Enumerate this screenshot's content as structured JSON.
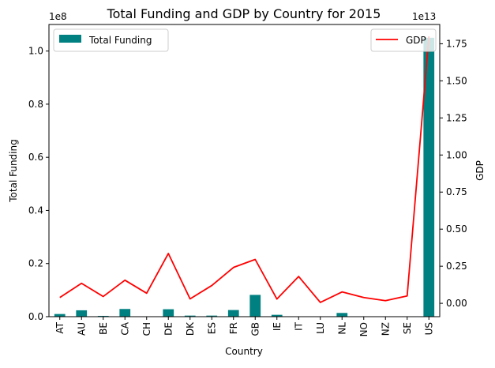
{
  "chart_data": {
    "type": "bar",
    "title": "Total Funding and GDP by Country for 2015",
    "xlabel": "Country",
    "ylabel": "Total Funding",
    "y2label": "GDP",
    "left_axis_multiplier": "1e8",
    "right_axis_multiplier": "1e13",
    "categories": [
      "AT",
      "AU",
      "BE",
      "CA",
      "CH",
      "DE",
      "DK",
      "ES",
      "FR",
      "GB",
      "IE",
      "IT",
      "LU",
      "NL",
      "NO",
      "NZ",
      "SE",
      "US"
    ],
    "ylim": [
      0,
      110000000.0
    ],
    "y2lim": [
      -900000000000.0,
      18800000000000.0
    ],
    "left_ticks": [
      0,
      20000000.0,
      40000000.0,
      60000000.0,
      80000000.0,
      100000000.0
    ],
    "left_tick_labels": [
      "0.0",
      "0.2",
      "0.4",
      "0.6",
      "0.8",
      "1.0"
    ],
    "right_ticks": [
      0,
      2500000000000.0,
      5000000000000.0,
      7500000000000.0,
      10000000000000.0,
      12500000000000.0,
      15000000000000.0,
      17500000000000.0
    ],
    "right_tick_labels": [
      "0.00",
      "0.25",
      "0.50",
      "0.75",
      "1.00",
      "1.25",
      "1.50",
      "1.75"
    ],
    "grid": false,
    "series": [
      {
        "name": "Total Funding",
        "type": "bar",
        "axis": "left",
        "color": "#008080",
        "values": [
          1000000,
          2400000,
          300000,
          2900000,
          100000,
          2800000,
          400000,
          400000,
          2500000,
          8200000,
          700000,
          100000,
          100000,
          1400000,
          100000,
          100000,
          100000,
          105000000
        ]
      },
      {
        "name": "GDP",
        "type": "line",
        "axis": "right",
        "color": "#ff0000",
        "values": [
          390000000000.0,
          1350000000000.0,
          460000000000.0,
          1560000000000.0,
          680000000000.0,
          3360000000000.0,
          300000000000.0,
          1200000000000.0,
          2420000000000.0,
          2960000000000.0,
          290000000000.0,
          1810000000000.0,
          60000000000.0,
          770000000000.0,
          390000000000.0,
          180000000000.0,
          500000000000.0,
          18000000000000.0
        ]
      }
    ],
    "legends": [
      {
        "placement": "upper-left",
        "label": "Total Funding"
      },
      {
        "placement": "upper-right",
        "label": "GDP"
      }
    ]
  }
}
